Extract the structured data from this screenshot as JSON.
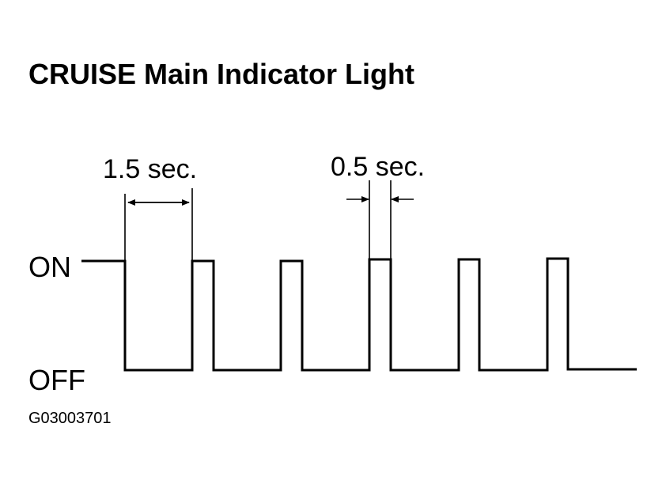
{
  "header": {
    "title": "CRUISE Main Indicator Light"
  },
  "annotations": {
    "interval_long": "1.5 sec.",
    "interval_short": "0.5 sec."
  },
  "levels": {
    "on": "ON",
    "off": "OFF"
  },
  "figure_id": "G03003701"
}
